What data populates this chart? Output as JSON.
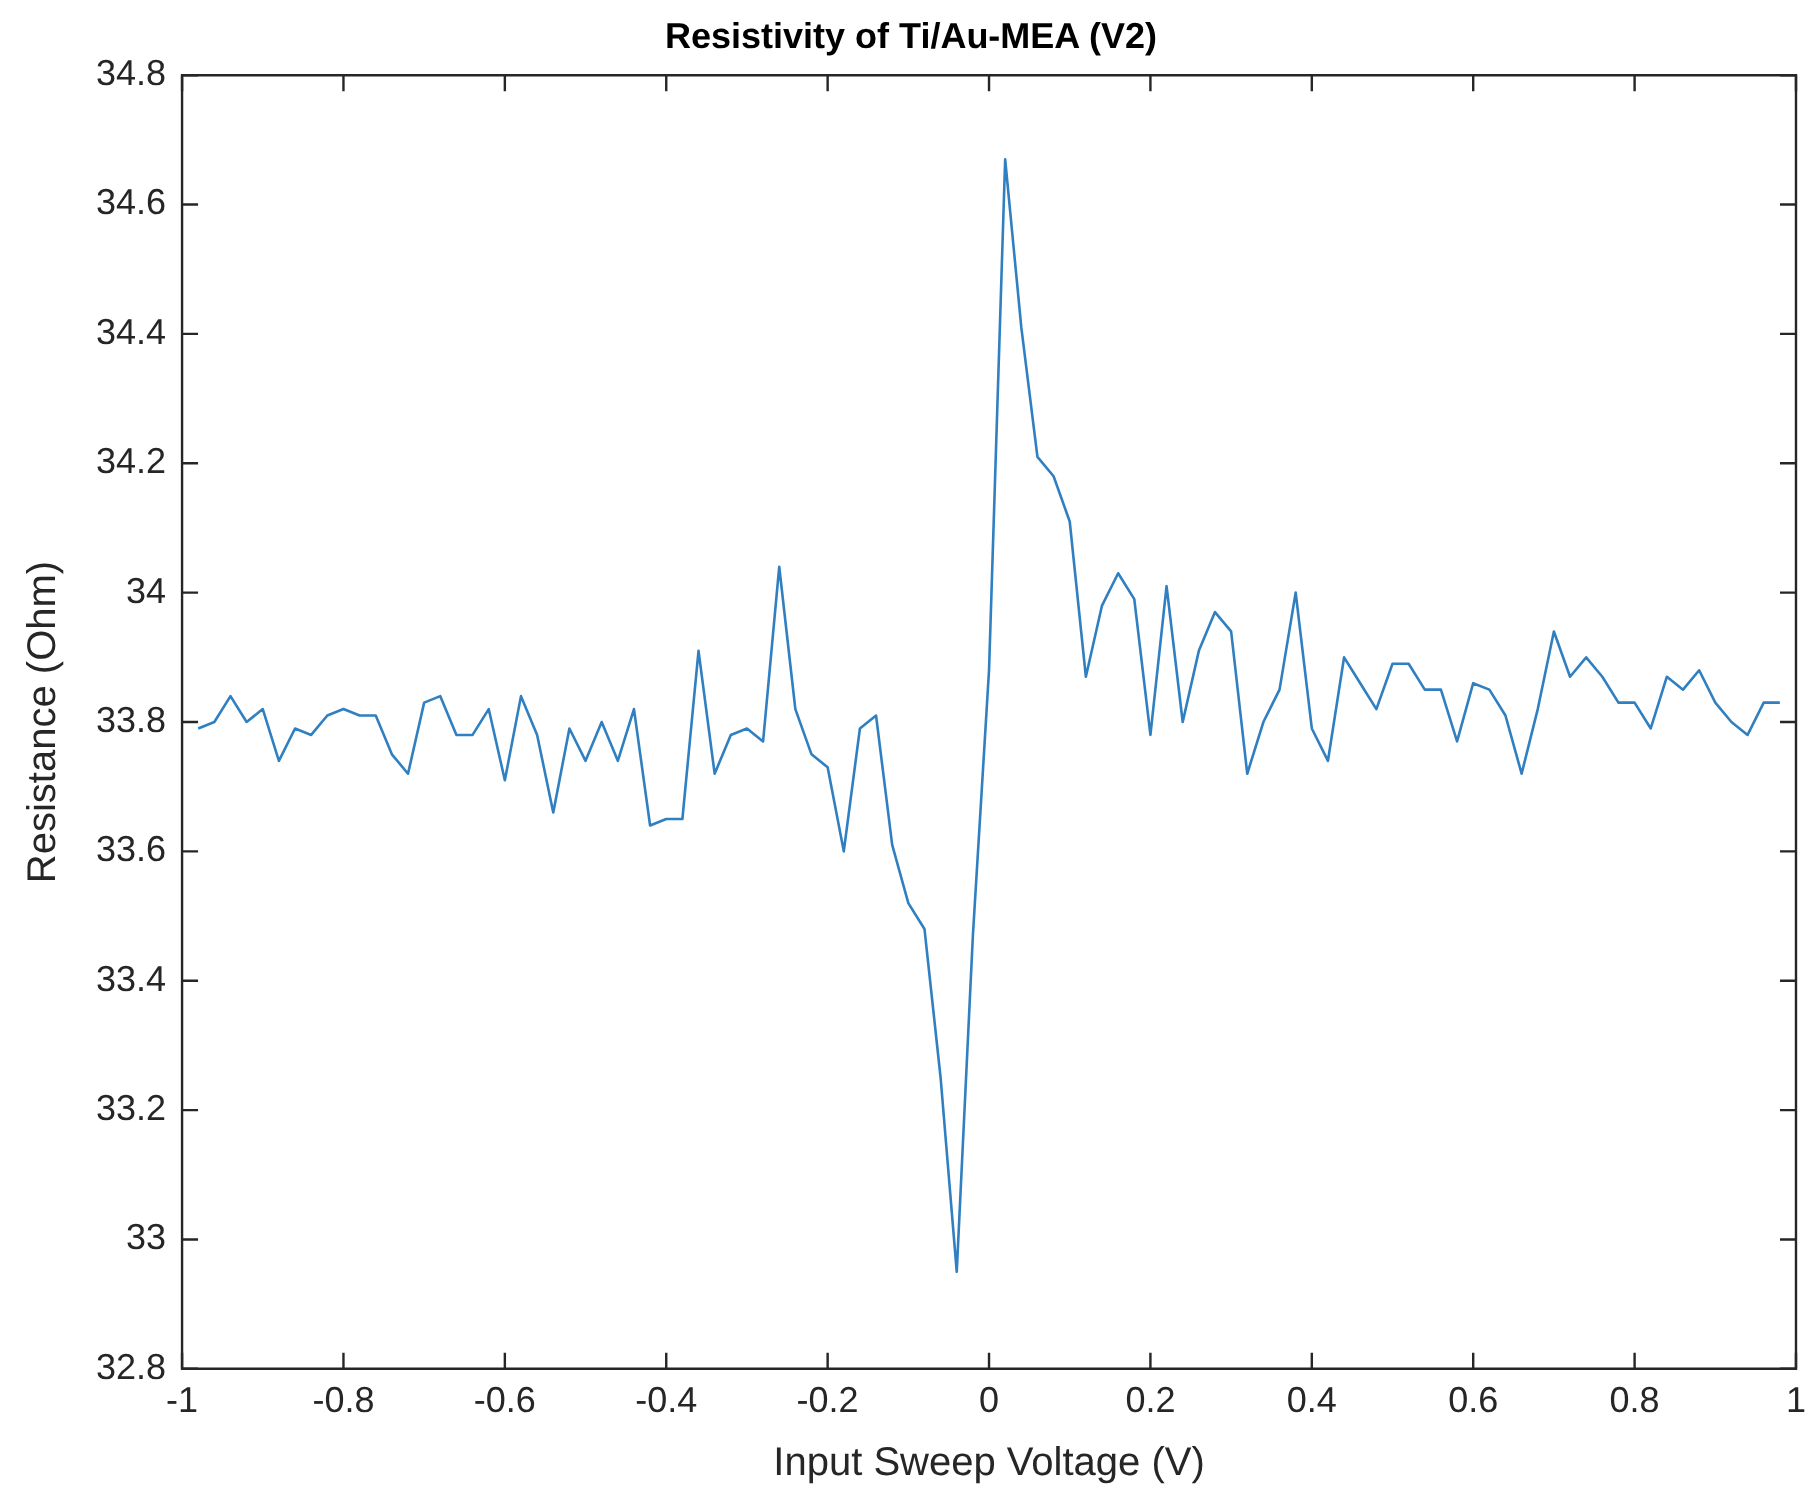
{
  "chart_data": {
    "type": "line",
    "title": "Resistivity of Ti/Au-MEA (V2)",
    "xlabel": "Input Sweep Voltage (V)",
    "ylabel": "Resistance (Ohm)",
    "xlim": [
      -1,
      1
    ],
    "xticks": [
      -1,
      -0.8,
      -0.6,
      -0.4,
      -0.2,
      0,
      0.2,
      0.4,
      0.6,
      0.8,
      1
    ],
    "ylim": [
      32.8,
      34.8
    ],
    "yticks": [
      32.8,
      33,
      33.2,
      33.4,
      33.6,
      33.8,
      34,
      34.2,
      34.4,
      34.6,
      34.8
    ],
    "grid": false,
    "legend": false,
    "x": [
      -0.98,
      -0.96,
      -0.94,
      -0.92,
      -0.9,
      -0.88,
      -0.86,
      -0.84,
      -0.82,
      -0.8,
      -0.78,
      -0.76,
      -0.74,
      -0.72,
      -0.7,
      -0.68,
      -0.66,
      -0.64,
      -0.62,
      -0.6,
      -0.58,
      -0.56,
      -0.54,
      -0.52,
      -0.5,
      -0.48,
      -0.46,
      -0.44,
      -0.42,
      -0.4,
      -0.38,
      -0.36,
      -0.34,
      -0.32,
      -0.3,
      -0.28,
      -0.26,
      -0.24,
      -0.22,
      -0.2,
      -0.18,
      -0.16,
      -0.14,
      -0.12,
      -0.1,
      -0.08,
      -0.06,
      -0.04,
      -0.02,
      0,
      0.02,
      0.04,
      0.06,
      0.08,
      0.1,
      0.12,
      0.14,
      0.16,
      0.18,
      0.2,
      0.22,
      0.24,
      0.26,
      0.28,
      0.3,
      0.32,
      0.34,
      0.36,
      0.38,
      0.4,
      0.42,
      0.44,
      0.46,
      0.48,
      0.5,
      0.52,
      0.54,
      0.56,
      0.58,
      0.6,
      0.62,
      0.64,
      0.66,
      0.68,
      0.7,
      0.72,
      0.74,
      0.76,
      0.78,
      0.8,
      0.82,
      0.84,
      0.86,
      0.88,
      0.9,
      0.92,
      0.94,
      0.96,
      0.98
    ],
    "series": [
      {
        "color": "#2f7fc1",
        "values": [
          33.79,
          33.8,
          33.84,
          33.8,
          33.82,
          33.74,
          33.79,
          33.78,
          33.81,
          33.82,
          33.81,
          33.81,
          33.75,
          33.72,
          33.83,
          33.84,
          33.78,
          33.78,
          33.82,
          33.71,
          33.84,
          33.78,
          33.66,
          33.79,
          33.74,
          33.8,
          33.74,
          33.82,
          33.64,
          33.65,
          33.65,
          33.91,
          33.72,
          33.78,
          33.79,
          33.77,
          34.04,
          33.82,
          33.75,
          33.73,
          33.6,
          33.79,
          33.81,
          33.61,
          33.52,
          33.48,
          33.25,
          32.95,
          33.47,
          33.88,
          34.67,
          34.41,
          34.21,
          34.18,
          34.11,
          33.87,
          33.98,
          34.03,
          33.99,
          33.78,
          34.01,
          33.8,
          33.91,
          33.97,
          33.94,
          33.72,
          33.8,
          33.85,
          34.0,
          33.79,
          33.74,
          33.9,
          33.86,
          33.82,
          33.89,
          33.89,
          33.85,
          33.85,
          33.77,
          33.86,
          33.85,
          33.81,
          33.72,
          33.82,
          33.94,
          33.87,
          33.9,
          33.87,
          33.83,
          33.83,
          33.79,
          33.87,
          33.85,
          33.88,
          33.83,
          33.8,
          33.78,
          33.83,
          33.83
        ]
      }
    ]
  }
}
